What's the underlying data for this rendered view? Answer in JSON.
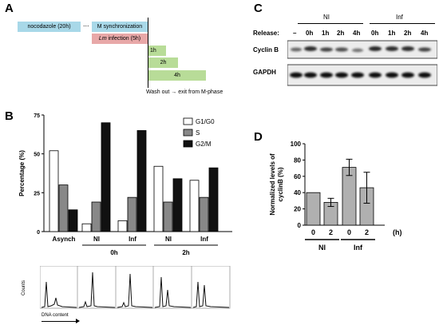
{
  "panel_a": {
    "label": "A",
    "boxes": [
      {
        "text": "nocodazole (20h)",
        "color": "#a8d8e8"
      },
      {
        "text": "...",
        "color": "none"
      },
      {
        "text": "M synchronization",
        "color": "#a8d8e8"
      },
      {
        "text": "Lm infection (5h)",
        "color": "#e8a8a8",
        "italic_prefix": "Lm"
      },
      {
        "text": "1h",
        "color": "#b8dc98"
      },
      {
        "text": "2h",
        "color": "#b8dc98"
      },
      {
        "text": "4h",
        "color": "#b8dc98"
      }
    ],
    "caption": "Wash out → exit from M-phase"
  },
  "panel_b": {
    "label": "B",
    "chart_data": {
      "type": "bar",
      "ylabel": "Percentage (%)",
      "ylim": [
        0,
        75
      ],
      "yticks": [
        0,
        25,
        50,
        75
      ],
      "categories": [
        "Asynch",
        "NI",
        "Inf",
        "NI",
        "Inf"
      ],
      "groups": [
        {
          "label": "0h",
          "categories": [
            "NI",
            "Inf"
          ]
        },
        {
          "label": "2h",
          "categories": [
            "NI",
            "Inf"
          ]
        }
      ],
      "series": [
        {
          "name": "G1/G0",
          "color": "#ffffff",
          "values": [
            52,
            5,
            7,
            42,
            33
          ]
        },
        {
          "name": "S",
          "color": "#888888",
          "values": [
            30,
            19,
            22,
            19,
            22
          ]
        },
        {
          "name": "G2/M",
          "color": "#111111",
          "values": [
            14,
            70,
            65,
            34,
            41
          ]
        }
      ],
      "legend_position": "top-right"
    },
    "histogram": {
      "ylabel": "Counts",
      "xlabel": "DNA content"
    }
  },
  "panel_c": {
    "label": "C",
    "group_labels": [
      "NI",
      "Inf"
    ],
    "release_label": "Release:",
    "lanes": [
      "–",
      "0h",
      "1h",
      "2h",
      "4h",
      "0h",
      "1h",
      "2h",
      "4h"
    ],
    "rows": [
      "Cyclin B",
      "GAPDH"
    ]
  },
  "panel_d": {
    "label": "D",
    "chart_data": {
      "type": "bar",
      "ylabel": "Normalized levels of cyclinB (%)",
      "ylim": [
        0,
        100
      ],
      "yticks": [
        0,
        20,
        40,
        60,
        80,
        100
      ],
      "categories": [
        "0",
        "2",
        "0",
        "2"
      ],
      "values": [
        40,
        28,
        71,
        46
      ],
      "errors": [
        0,
        5,
        10,
        19
      ],
      "groups": [
        {
          "label": "NI",
          "categories": [
            "0",
            "2"
          ]
        },
        {
          "label": "Inf",
          "categories": [
            "0",
            "2"
          ]
        }
      ],
      "x_unit": "(h)",
      "bar_color": "#b0b0b0"
    }
  }
}
